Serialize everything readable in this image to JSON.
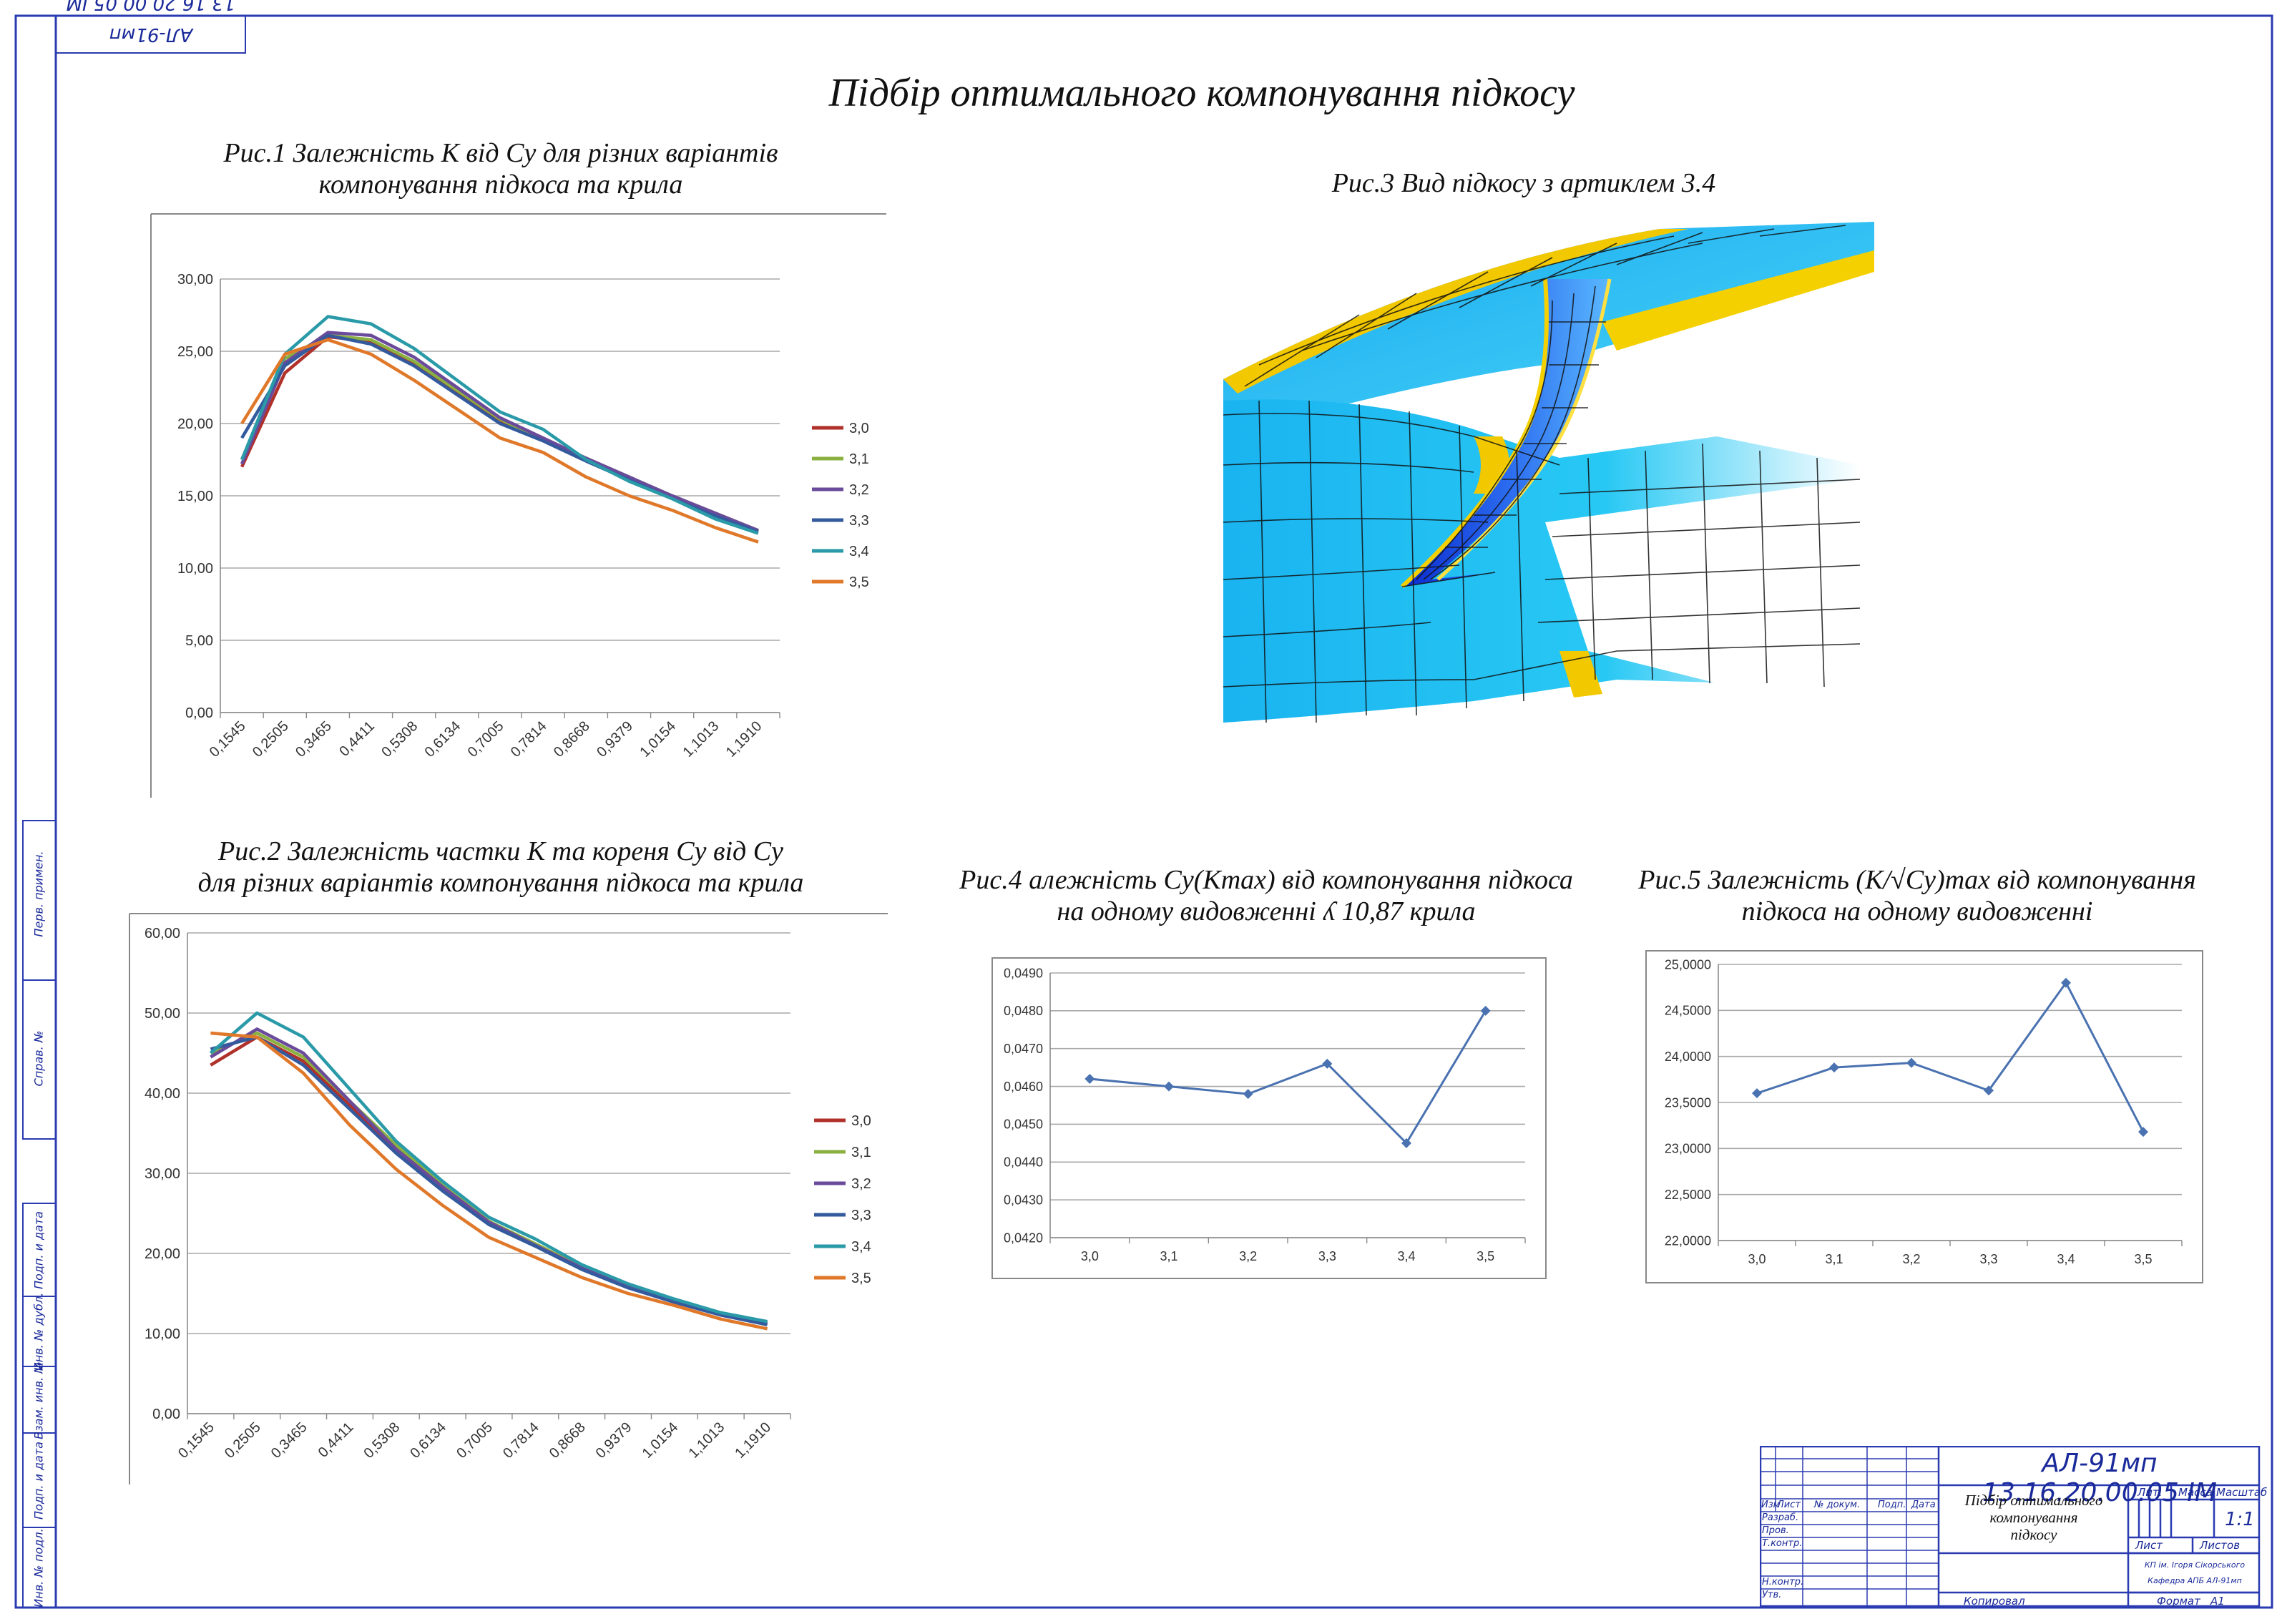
{
  "main_title": "Підбір оптимального компонування підкосу",
  "stamp_rotated": "АЛ-91мп 13.16.20.00.05 ІМ",
  "side_strip": [
    "Перв. примен.",
    "Справ. №",
    "Подп. и дата",
    "Инв. № дубл.",
    "Взам. инв. №",
    "Подп. и дата",
    "Инв. № подл."
  ],
  "fig1": {
    "title_line1": "Рис.1  Залежність К від Су для різних варіантів",
    "title_line2": "компонування підкоса та крила"
  },
  "fig2": {
    "title_line1": "Рис.2 Залежність частки К та кореня Су від Су",
    "title_line2": "для різних варіантів компонування підкоса та крила"
  },
  "fig3": {
    "title": "Рис.3 Вид підкосу з артиклем 3.4"
  },
  "fig4": {
    "title_line1": "Рис.4 алежність Су(Kmax) від компонування підкоса",
    "title_line2": "на одному видовженні ʎ 10,87  крила"
  },
  "fig5": {
    "title_line1": "Рис.5 Залежність (K/√Cy)max від компонування",
    "title_line2": "підкоса на одному видовженні"
  },
  "chart_data": [
    {
      "id": "fig1",
      "type": "line",
      "categories": [
        "0,1545",
        "0,2505",
        "0,3465",
        "0,4411",
        "0,5308",
        "0,6134",
        "0,7005",
        "0,7814",
        "0,8668",
        "0,9379",
        "1,0154",
        "1,1013",
        "1,1910"
      ],
      "ylim": [
        0,
        30
      ],
      "yticks": [
        "0,00",
        "5,00",
        "10,00",
        "15,00",
        "20,00",
        "25,00",
        "30,00"
      ],
      "grid": true,
      "legend": "right",
      "series": [
        {
          "name": "3,0",
          "color": "#b0302a",
          "values": [
            17.0,
            23.5,
            26.0,
            25.7,
            24.2,
            22.2,
            20.1,
            18.9,
            17.5,
            16.2,
            14.9,
            13.7,
            12.6
          ]
        },
        {
          "name": "3,1",
          "color": "#8ab040",
          "values": [
            17.5,
            24.5,
            26.1,
            25.8,
            24.3,
            22.3,
            20.3,
            18.9,
            17.6,
            16.3,
            15.0,
            13.8,
            12.6
          ]
        },
        {
          "name": "3,2",
          "color": "#6a4a9a",
          "values": [
            17.2,
            24.2,
            26.3,
            26.1,
            24.6,
            22.5,
            20.4,
            19.0,
            17.6,
            16.3,
            15.0,
            13.8,
            12.6
          ]
        },
        {
          "name": "3,3",
          "color": "#345a9e",
          "values": [
            19.0,
            24.0,
            26.1,
            25.5,
            24.0,
            22.0,
            20.0,
            18.8,
            17.4,
            16.1,
            14.8,
            13.6,
            12.5
          ]
        },
        {
          "name": "3,4",
          "color": "#2a9aa8",
          "values": [
            17.5,
            24.8,
            27.4,
            26.9,
            25.2,
            23.0,
            20.8,
            19.6,
            17.5,
            16.0,
            14.8,
            13.4,
            12.4
          ]
        },
        {
          "name": "3,5",
          "color": "#e0782a",
          "values": [
            20.0,
            24.8,
            25.8,
            24.8,
            23.0,
            21.0,
            19.0,
            18.0,
            16.3,
            15.0,
            14.0,
            12.8,
            11.8
          ]
        }
      ]
    },
    {
      "id": "fig2",
      "type": "line",
      "categories": [
        "0,1545",
        "0,2505",
        "0,3465",
        "0,4411",
        "0,5308",
        "0,6134",
        "0,7005",
        "0,7814",
        "0,8668",
        "0,9379",
        "1,0154",
        "1,1013",
        "1,1910"
      ],
      "ylim": [
        0,
        60
      ],
      "yticks": [
        "0,00",
        "10,00",
        "20,00",
        "30,00",
        "40,00",
        "50,00",
        "60,00"
      ],
      "grid": true,
      "legend": "right",
      "series": [
        {
          "name": "3,0",
          "color": "#b0302a",
          "values": [
            43.5,
            47.0,
            44.0,
            38.5,
            33.0,
            28.0,
            23.8,
            21.0,
            18.2,
            15.8,
            14.0,
            12.5,
            11.2
          ]
        },
        {
          "name": "3,1",
          "color": "#8ab040",
          "values": [
            45.0,
            47.5,
            44.5,
            39.0,
            33.5,
            28.5,
            24.0,
            21.2,
            18.3,
            16.0,
            14.2,
            12.6,
            11.3
          ]
        },
        {
          "name": "3,2",
          "color": "#6a4a9a",
          "values": [
            44.5,
            48.0,
            45.0,
            39.0,
            33.0,
            28.3,
            23.9,
            21.0,
            18.2,
            15.9,
            14.1,
            12.5,
            11.3
          ]
        },
        {
          "name": "3,3",
          "color": "#345a9e",
          "values": [
            45.5,
            47.0,
            43.5,
            38.0,
            32.5,
            27.8,
            23.6,
            20.9,
            18.0,
            15.7,
            13.9,
            12.3,
            11.1
          ]
        },
        {
          "name": "3,4",
          "color": "#2a9aa8",
          "values": [
            45.0,
            50.0,
            47.0,
            40.5,
            34.0,
            29.0,
            24.5,
            21.8,
            18.6,
            16.2,
            14.3,
            12.6,
            11.5
          ]
        },
        {
          "name": "3,5",
          "color": "#e0782a",
          "values": [
            47.5,
            47.0,
            42.5,
            36.0,
            30.5,
            26.0,
            22.0,
            19.5,
            17.0,
            15.0,
            13.5,
            11.8,
            10.6
          ]
        }
      ]
    },
    {
      "id": "fig4",
      "type": "line",
      "categories": [
        "3,0",
        "3,1",
        "3,2",
        "3,3",
        "3,4",
        "3,5"
      ],
      "ylim": [
        0.042,
        0.049
      ],
      "yticks": [
        "0,0420",
        "0,0430",
        "0,0440",
        "0,0450",
        "0,0460",
        "0,0470",
        "0,0480",
        "0,0490"
      ],
      "grid": true,
      "series": [
        {
          "color": "#4a72b0",
          "values": [
            0.0462,
            0.046,
            0.0458,
            0.0466,
            0.0445,
            0.048
          ]
        }
      ]
    },
    {
      "id": "fig5",
      "type": "line",
      "categories": [
        "3,0",
        "3,1",
        "3,2",
        "3,3",
        "3,4",
        "3,5"
      ],
      "ylim": [
        22.0,
        25.0
      ],
      "yticks": [
        "22,0000",
        "22,5000",
        "23,0000",
        "23,5000",
        "24,0000",
        "24,5000",
        "25,0000"
      ],
      "grid": true,
      "series": [
        {
          "color": "#4a72b0",
          "values": [
            23.6,
            23.88,
            23.93,
            23.63,
            24.8,
            23.18
          ]
        }
      ]
    }
  ],
  "title_block": {
    "doc_code": "АЛ-91мп 13.16.20.00.05 ІМ",
    "title": [
      "Підбір оптимального",
      "компонування",
      "підкосу"
    ],
    "col_headers": [
      "Изм",
      "Лист",
      "№ докум.",
      "Подп.",
      "Дата"
    ],
    "row_labels": [
      "Разраб.",
      "Пров.",
      "Т.контр.",
      "",
      "Н.контр.",
      "Утв."
    ],
    "lit_label": "Лит.",
    "mass_label": "Масса",
    "scale_label": "Масштаб",
    "scale": "1:1",
    "sheet_label": "Лист",
    "sheets_label": "Листов",
    "org_line1": "КП ім. Ігоря Сікорського",
    "org_line2": "Кафедра  АПБ  АЛ-91мп",
    "copied": "Копировал",
    "format_label": "Формат",
    "format": "А1"
  },
  "colors": {
    "frame": "#2a3ab0",
    "grid": "#a8a8a8"
  }
}
